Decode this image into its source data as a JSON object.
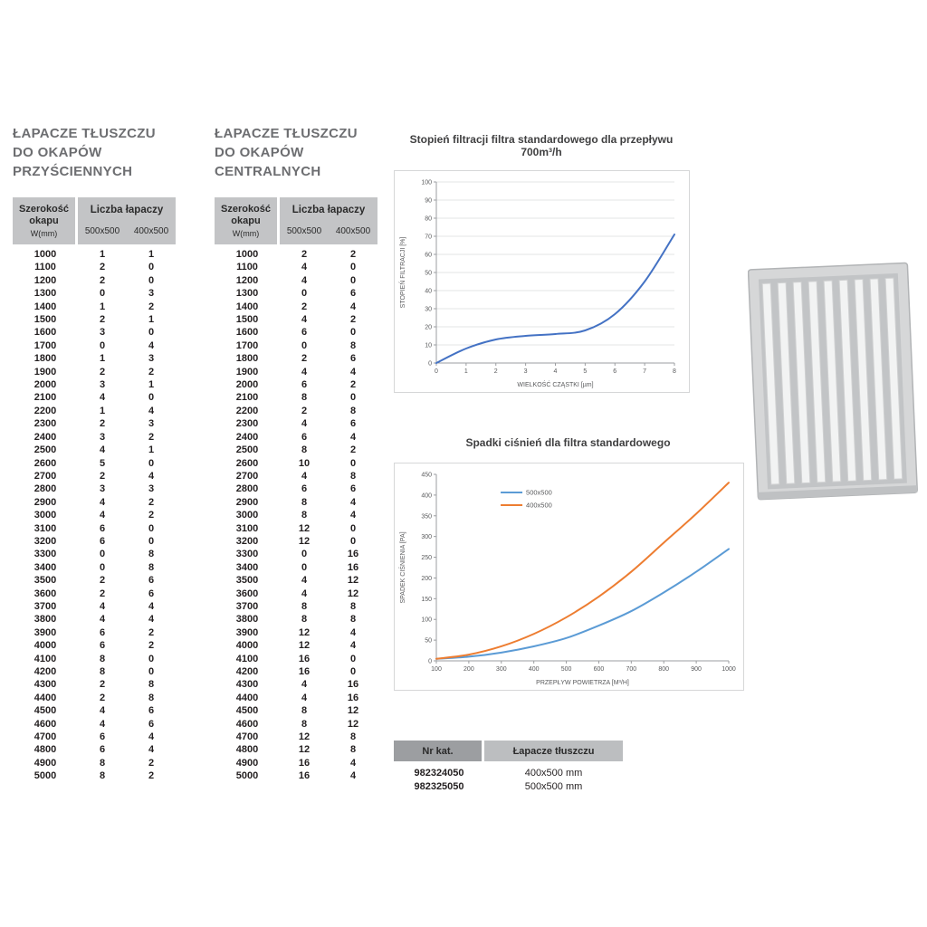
{
  "tables": [
    {
      "title_lines": [
        "ŁAPACZE TŁUSZCZU",
        "DO OKAPÓW",
        "PRZYŚCIENNYCH"
      ],
      "header": {
        "col1_line1": "Szerokość",
        "col1_line2": "okapu",
        "col1_unit": "W(mm)",
        "group": "Liczba łapaczy",
        "sub1": "500x500",
        "sub2": "400x500"
      },
      "rows": [
        [
          1000,
          1,
          1
        ],
        [
          1100,
          2,
          0
        ],
        [
          1200,
          2,
          0
        ],
        [
          1300,
          0,
          3
        ],
        [
          1400,
          1,
          2
        ],
        [
          1500,
          2,
          1
        ],
        [
          1600,
          3,
          0
        ],
        [
          1700,
          0,
          4
        ],
        [
          1800,
          1,
          3
        ],
        [
          1900,
          2,
          2
        ],
        [
          2000,
          3,
          1
        ],
        [
          2100,
          4,
          0
        ],
        [
          2200,
          1,
          4
        ],
        [
          2300,
          2,
          3
        ],
        [
          2400,
          3,
          2
        ],
        [
          2500,
          4,
          1
        ],
        [
          2600,
          5,
          0
        ],
        [
          2700,
          2,
          4
        ],
        [
          2800,
          3,
          3
        ],
        [
          2900,
          4,
          2
        ],
        [
          3000,
          4,
          2
        ],
        [
          3100,
          6,
          0
        ],
        [
          3200,
          6,
          0
        ],
        [
          3300,
          0,
          8
        ],
        [
          3400,
          0,
          8
        ],
        [
          3500,
          2,
          6
        ],
        [
          3600,
          2,
          6
        ],
        [
          3700,
          4,
          4
        ],
        [
          3800,
          4,
          4
        ],
        [
          3900,
          6,
          2
        ],
        [
          4000,
          6,
          2
        ],
        [
          4100,
          8,
          0
        ],
        [
          4200,
          8,
          0
        ],
        [
          4300,
          2,
          8
        ],
        [
          4400,
          2,
          8
        ],
        [
          4500,
          4,
          6
        ],
        [
          4600,
          4,
          6
        ],
        [
          4700,
          6,
          4
        ],
        [
          4800,
          6,
          4
        ],
        [
          4900,
          8,
          2
        ],
        [
          5000,
          8,
          2
        ]
      ]
    },
    {
      "title_lines": [
        "ŁAPACZE TŁUSZCZU",
        "DO OKAPÓW",
        "CENTRALNYCH"
      ],
      "header": {
        "col1_line1": "Szerokość",
        "col1_line2": "okapu",
        "col1_unit": "W(mm)",
        "group": "Liczba łapaczy",
        "sub1": "500x500",
        "sub2": "400x500"
      },
      "rows": [
        [
          1000,
          2,
          2
        ],
        [
          1100,
          4,
          0
        ],
        [
          1200,
          4,
          0
        ],
        [
          1300,
          0,
          6
        ],
        [
          1400,
          2,
          4
        ],
        [
          1500,
          4,
          2
        ],
        [
          1600,
          6,
          0
        ],
        [
          1700,
          0,
          8
        ],
        [
          1800,
          2,
          6
        ],
        [
          1900,
          4,
          4
        ],
        [
          2000,
          6,
          2
        ],
        [
          2100,
          8,
          0
        ],
        [
          2200,
          2,
          8
        ],
        [
          2300,
          4,
          6
        ],
        [
          2400,
          6,
          4
        ],
        [
          2500,
          8,
          2
        ],
        [
          2600,
          10,
          0
        ],
        [
          2700,
          4,
          8
        ],
        [
          2800,
          6,
          6
        ],
        [
          2900,
          8,
          4
        ],
        [
          3000,
          8,
          4
        ],
        [
          3100,
          12,
          0
        ],
        [
          3200,
          12,
          0
        ],
        [
          3300,
          0,
          16
        ],
        [
          3400,
          0,
          16
        ],
        [
          3500,
          4,
          12
        ],
        [
          3600,
          4,
          12
        ],
        [
          3700,
          8,
          8
        ],
        [
          3800,
          8,
          8
        ],
        [
          3900,
          12,
          4
        ],
        [
          4000,
          12,
          4
        ],
        [
          4100,
          16,
          0
        ],
        [
          4200,
          16,
          0
        ],
        [
          4300,
          4,
          16
        ],
        [
          4400,
          4,
          16
        ],
        [
          4500,
          8,
          12
        ],
        [
          4600,
          8,
          12
        ],
        [
          4700,
          12,
          8
        ],
        [
          4800,
          12,
          8
        ],
        [
          4900,
          16,
          4
        ],
        [
          5000,
          16,
          4
        ]
      ]
    }
  ],
  "chart_data": [
    {
      "type": "line",
      "title": "Stopień filtracji filtra standardowego dla przepływu 700m³/h",
      "xlabel": "WIELKOŚĆ CZĄSTKI [µm]",
      "ylabel": "STOPIEŃ FILTRACJI [%]",
      "xlim": [
        0,
        8
      ],
      "ylim": [
        0,
        100
      ],
      "xticks": [
        0,
        1,
        2,
        3,
        4,
        5,
        6,
        7,
        8
      ],
      "yticks": [
        0,
        10,
        20,
        30,
        40,
        50,
        60,
        70,
        80,
        90,
        100
      ],
      "grid": true,
      "show_legend": false,
      "series": [
        {
          "name": "",
          "color": "#4472c4",
          "x": [
            0,
            1,
            2,
            3,
            4,
            5,
            6,
            7,
            8
          ],
          "y": [
            0,
            8,
            13,
            15,
            16,
            18,
            27,
            45,
            71
          ]
        }
      ]
    },
    {
      "type": "line",
      "title": "Spadki ciśnień dla filtra standardowego",
      "xlabel": "PRZEPŁYW POWIETRZA [M³/H]",
      "ylabel": "SPADEK CIŚNIENIA [PA]",
      "xlim": [
        100,
        1000
      ],
      "ylim": [
        0,
        450
      ],
      "xticks": [
        100,
        200,
        300,
        400,
        500,
        600,
        700,
        800,
        900,
        1000
      ],
      "yticks": [
        0,
        50,
        100,
        150,
        200,
        250,
        300,
        350,
        400,
        450
      ],
      "grid": false,
      "show_legend": true,
      "legend_position": "top-center",
      "series": [
        {
          "name": "500x500",
          "color": "#5b9bd5",
          "x": [
            100,
            200,
            300,
            400,
            500,
            600,
            700,
            800,
            900,
            1000
          ],
          "y": [
            5,
            10,
            20,
            35,
            55,
            85,
            120,
            165,
            215,
            270
          ]
        },
        {
          "name": "400x500",
          "color": "#ed7d31",
          "x": [
            100,
            200,
            300,
            400,
            500,
            600,
            700,
            800,
            900,
            1000
          ],
          "y": [
            5,
            15,
            35,
            65,
            105,
            155,
            215,
            285,
            355,
            430
          ]
        }
      ]
    }
  ],
  "catalog": {
    "header_left": "Nr kat.",
    "header_right": "Łapacze tłuszczu",
    "rows": [
      [
        "982324050",
        "400x500 mm"
      ],
      [
        "982325050",
        "500x500 mm"
      ]
    ]
  }
}
